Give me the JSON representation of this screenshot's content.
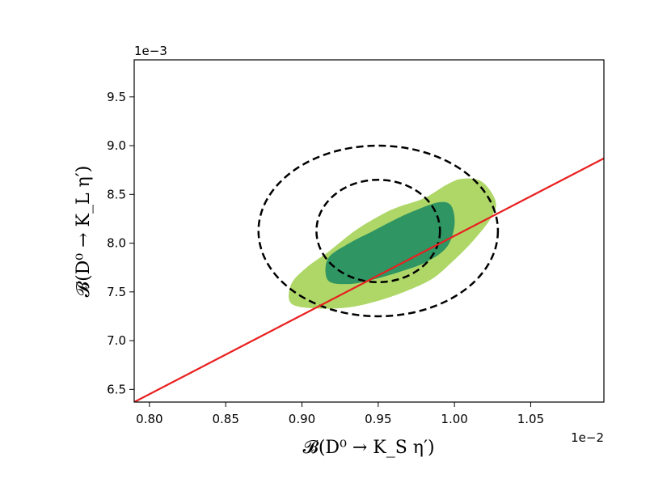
{
  "chart_data": {
    "type": "contour",
    "xlabel": "𝓑(D⁰ → K_S η′)",
    "ylabel": "𝓑(D⁰ → K_L η′)",
    "x_offset_label": "1e−2",
    "y_offset_label": "1e−3",
    "xlim": [
      0.79,
      1.098
    ],
    "ylim": [
      6.37,
      9.88
    ],
    "xticks": [
      0.8,
      0.85,
      0.9,
      0.95,
      1.0,
      1.05
    ],
    "xtick_labels": [
      "0.80",
      "0.85",
      "0.90",
      "0.95",
      "1.00",
      "1.05"
    ],
    "yticks": [
      6.5,
      7.0,
      7.5,
      8.0,
      8.5,
      9.0,
      9.5
    ],
    "ytick_labels": [
      "6.5",
      "7.0",
      "7.5",
      "8.0",
      "8.5",
      "9.0",
      "9.5"
    ],
    "grid": false,
    "colors": {
      "outer_region": "#aed767",
      "inner_region": "#2f9563",
      "line": "#e8201f",
      "ellipse": "#000000"
    },
    "filled_regions": [
      {
        "level": "outer",
        "points": [
          [
            0.893,
            7.38
          ],
          [
            0.893,
            7.58
          ],
          [
            0.903,
            7.75
          ],
          [
            0.918,
            7.92
          ],
          [
            0.935,
            8.13
          ],
          [
            0.952,
            8.29
          ],
          [
            0.963,
            8.37
          ],
          [
            0.98,
            8.46
          ],
          [
            0.995,
            8.6
          ],
          [
            1.005,
            8.66
          ],
          [
            1.018,
            8.63
          ],
          [
            1.027,
            8.43
          ],
          [
            1.024,
            8.26
          ],
          [
            1.012,
            8.02
          ],
          [
            0.998,
            7.8
          ],
          [
            0.985,
            7.63
          ],
          [
            0.967,
            7.5
          ],
          [
            0.948,
            7.4
          ],
          [
            0.93,
            7.34
          ],
          [
            0.91,
            7.33
          ]
        ]
      },
      {
        "level": "inner",
        "points": [
          [
            0.917,
            7.62
          ],
          [
            0.917,
            7.84
          ],
          [
            0.93,
            7.99
          ],
          [
            0.946,
            8.12
          ],
          [
            0.962,
            8.25
          ],
          [
            0.975,
            8.34
          ],
          [
            0.99,
            8.42
          ],
          [
            0.998,
            8.38
          ],
          [
            1.0,
            8.18
          ],
          [
            0.995,
            7.96
          ],
          [
            0.982,
            7.81
          ],
          [
            0.965,
            7.71
          ],
          [
            0.945,
            7.62
          ],
          [
            0.93,
            7.58
          ]
        ]
      }
    ],
    "ellipses": [
      {
        "cx": 0.95,
        "cy": 8.125,
        "rx": 0.0405,
        "ry": 0.525,
        "style": "dashed"
      },
      {
        "cx": 0.95,
        "cy": 8.125,
        "rx": 0.0785,
        "ry": 0.875,
        "style": "dashed"
      }
    ],
    "line": {
      "x": [
        0.79,
        1.098
      ],
      "y": [
        6.37,
        8.87
      ]
    }
  }
}
